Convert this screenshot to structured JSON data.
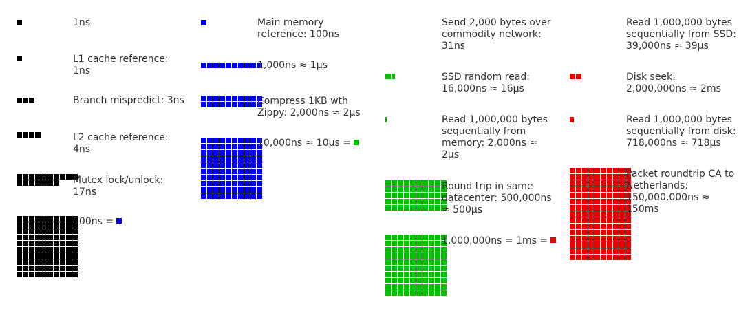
{
  "colors": {
    "black": "#000000",
    "blue": "#0000ee",
    "green": "#00c000",
    "red": "#ee0000"
  },
  "unit": "1ns",
  "entries": [
    {
      "id": "one-ns",
      "label": "1ns",
      "units": 1,
      "color": "black"
    },
    {
      "id": "l1-cache",
      "label": "L1 cache reference:\n1ns",
      "units": 1,
      "color": "black"
    },
    {
      "id": "branch-mispredict",
      "label": "Branch mispredict: 3ns",
      "units": 3,
      "color": "black"
    },
    {
      "id": "l2-cache",
      "label": "L2 cache reference:\n4ns",
      "units": 4,
      "color": "black"
    },
    {
      "id": "mutex",
      "label": "Mutex lock/unlock:\n17ns",
      "units": 17,
      "color": "black"
    },
    {
      "id": "hundred-ns",
      "label": "100ns =",
      "units": 100,
      "color": "black",
      "equals": "blue"
    },
    {
      "id": "main-memory",
      "label": "Main memory\nreference: 100ns",
      "units": 1,
      "color": "blue"
    },
    {
      "id": "one-us",
      "label": "1,000ns ≈ 1μs",
      "units": 10,
      "color": "blue"
    },
    {
      "id": "compress-zippy",
      "label": "Compress 1KB wth\nZippy: 2,000ns ≈ 2μs",
      "units": 20,
      "color": "blue"
    },
    {
      "id": "ten-us",
      "label": "10,000ns ≈ 10μs =",
      "units": 100,
      "color": "blue",
      "equals": "green"
    },
    {
      "id": "send-network",
      "label": "Send 2,000 bytes over\ncommodity network:\n31ns",
      "units": 0,
      "color": "green"
    },
    {
      "id": "ssd-random-read",
      "label": "SSD random read:\n16,000ns ≈ 16μs",
      "units": 1.6,
      "color": "green"
    },
    {
      "id": "read-memory-seq",
      "label": "Read 1,000,000 bytes\nsequentially from\nmemory: 2,000ns ≈\n2μs",
      "units": 0.2,
      "color": "green"
    },
    {
      "id": "datacenter-roundtrip",
      "label": "Round trip in same\ndatacenter: 500,000ns\n≈ 500μs",
      "units": 50,
      "color": "green"
    },
    {
      "id": "one-ms",
      "label": "1,000,000ns = 1ms =",
      "units": 100,
      "color": "green",
      "equals": "red"
    },
    {
      "id": "read-ssd-seq",
      "label": "Read 1,000,000 bytes\nsequentially from SSD:\n39,000ns ≈ 39μs",
      "units": 0,
      "color": "red"
    },
    {
      "id": "disk-seek",
      "label": "Disk seek:\n2,000,000ns ≈ 2ms",
      "units": 2,
      "color": "red"
    },
    {
      "id": "read-disk-seq",
      "label": "Read 1,000,000 bytes\nsequentially from disk:\n718,000ns ≈ 718μs",
      "units": 0.7,
      "color": "red"
    },
    {
      "id": "packet-roundtrip",
      "label": "Packet roundtrip CA to\nNetherlands:\n150,000,000ns ≈\n150ms",
      "units": 150,
      "color": "red"
    }
  ]
}
